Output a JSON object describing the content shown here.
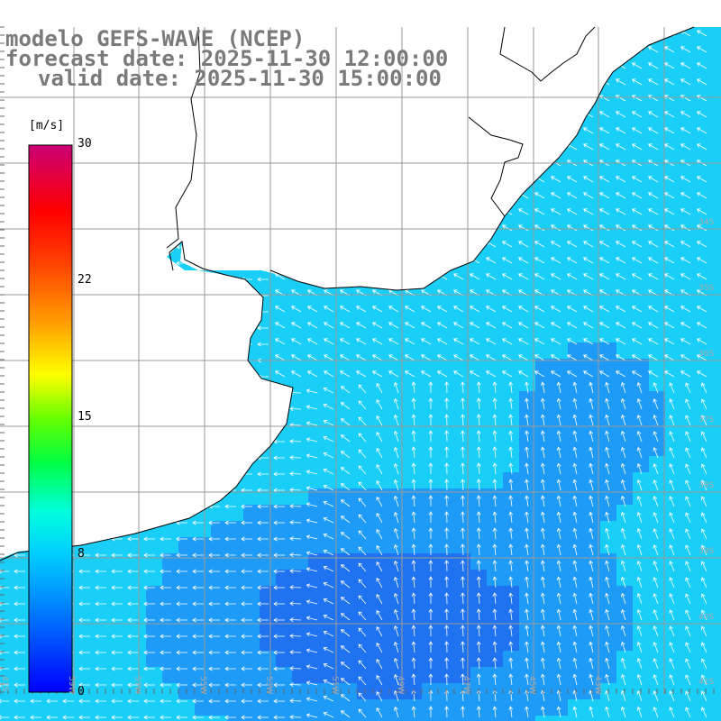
{
  "header": {
    "model_line": "modelo GEFS-WAVE (NCEP)",
    "forecast_line": "forecast date: 2025-11-30 12:00:00",
    "valid_line": "valid date: 2025-11-30 15:00:00"
  },
  "colorbar": {
    "unit": "[m/s]",
    "ticks": [
      {
        "label": "30",
        "value": 30
      },
      {
        "label": "22",
        "value": 22
      },
      {
        "label": "15",
        "value": 15
      },
      {
        "label": "8",
        "value": 8
      },
      {
        "label": "0",
        "value": 0
      }
    ],
    "range": [
      0,
      30
    ],
    "colors": [
      "#0000ff",
      "#0088ff",
      "#00e8ff",
      "#00ff80",
      "#00dd00",
      "#aaff00",
      "#ffff00",
      "#ff9900",
      "#ff3300",
      "#ff0000",
      "#cc0077"
    ]
  },
  "map": {
    "grid_labels": [
      "41S",
      "59W",
      "57W",
      "55W",
      "53W",
      "51W",
      "49W",
      "47W",
      "45W",
      "43W",
      "41S",
      "40S",
      "39S",
      "38S",
      "37S",
      "36S",
      "35S",
      "34S"
    ],
    "ocean_colors": {
      "low": "#1f73f0",
      "mid": "#1e9bf7",
      "high": "#19cff7",
      "coast": "#2ee3ff"
    },
    "land_color": "#ffffff",
    "coast_color": "#000000",
    "grid_color": "#999999",
    "arrow_color": "#ffffff"
  }
}
